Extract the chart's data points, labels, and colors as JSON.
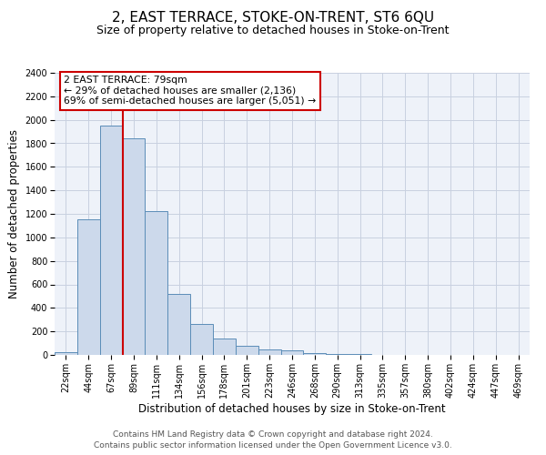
{
  "title": "2, EAST TERRACE, STOKE-ON-TRENT, ST6 6QU",
  "subtitle": "Size of property relative to detached houses in Stoke-on-Trent",
  "xlabel": "Distribution of detached houses by size in Stoke-on-Trent",
  "ylabel": "Number of detached properties",
  "footer_line1": "Contains HM Land Registry data © Crown copyright and database right 2024.",
  "footer_line2": "Contains public sector information licensed under the Open Government Licence v3.0.",
  "bar_labels": [
    "22sqm",
    "44sqm",
    "67sqm",
    "89sqm",
    "111sqm",
    "134sqm",
    "156sqm",
    "178sqm",
    "201sqm",
    "223sqm",
    "246sqm",
    "268sqm",
    "290sqm",
    "313sqm",
    "335sqm",
    "357sqm",
    "380sqm",
    "402sqm",
    "424sqm",
    "447sqm",
    "469sqm"
  ],
  "bar_values": [
    25,
    1155,
    1950,
    1840,
    1225,
    515,
    265,
    140,
    75,
    50,
    42,
    18,
    8,
    5,
    3,
    2,
    1,
    1,
    0,
    0,
    0
  ],
  "bar_color": "#ccd9eb",
  "bar_edge_color": "#5b8db8",
  "grid_color": "#c8d0e0",
  "background_color": "#eef2f9",
  "ylim": [
    0,
    2400
  ],
  "yticks": [
    0,
    200,
    400,
    600,
    800,
    1000,
    1200,
    1400,
    1600,
    1800,
    2000,
    2200,
    2400
  ],
  "annotation_text": "2 EAST TERRACE: 79sqm\n← 29% of detached houses are smaller (2,136)\n69% of semi-detached houses are larger (5,051) →",
  "annotation_box_color": "#ffffff",
  "annotation_box_edge": "#cc0000",
  "red_line_color": "#cc0000",
  "title_fontsize": 11,
  "subtitle_fontsize": 9,
  "axis_label_fontsize": 8.5,
  "tick_fontsize": 7,
  "footer_fontsize": 6.5
}
